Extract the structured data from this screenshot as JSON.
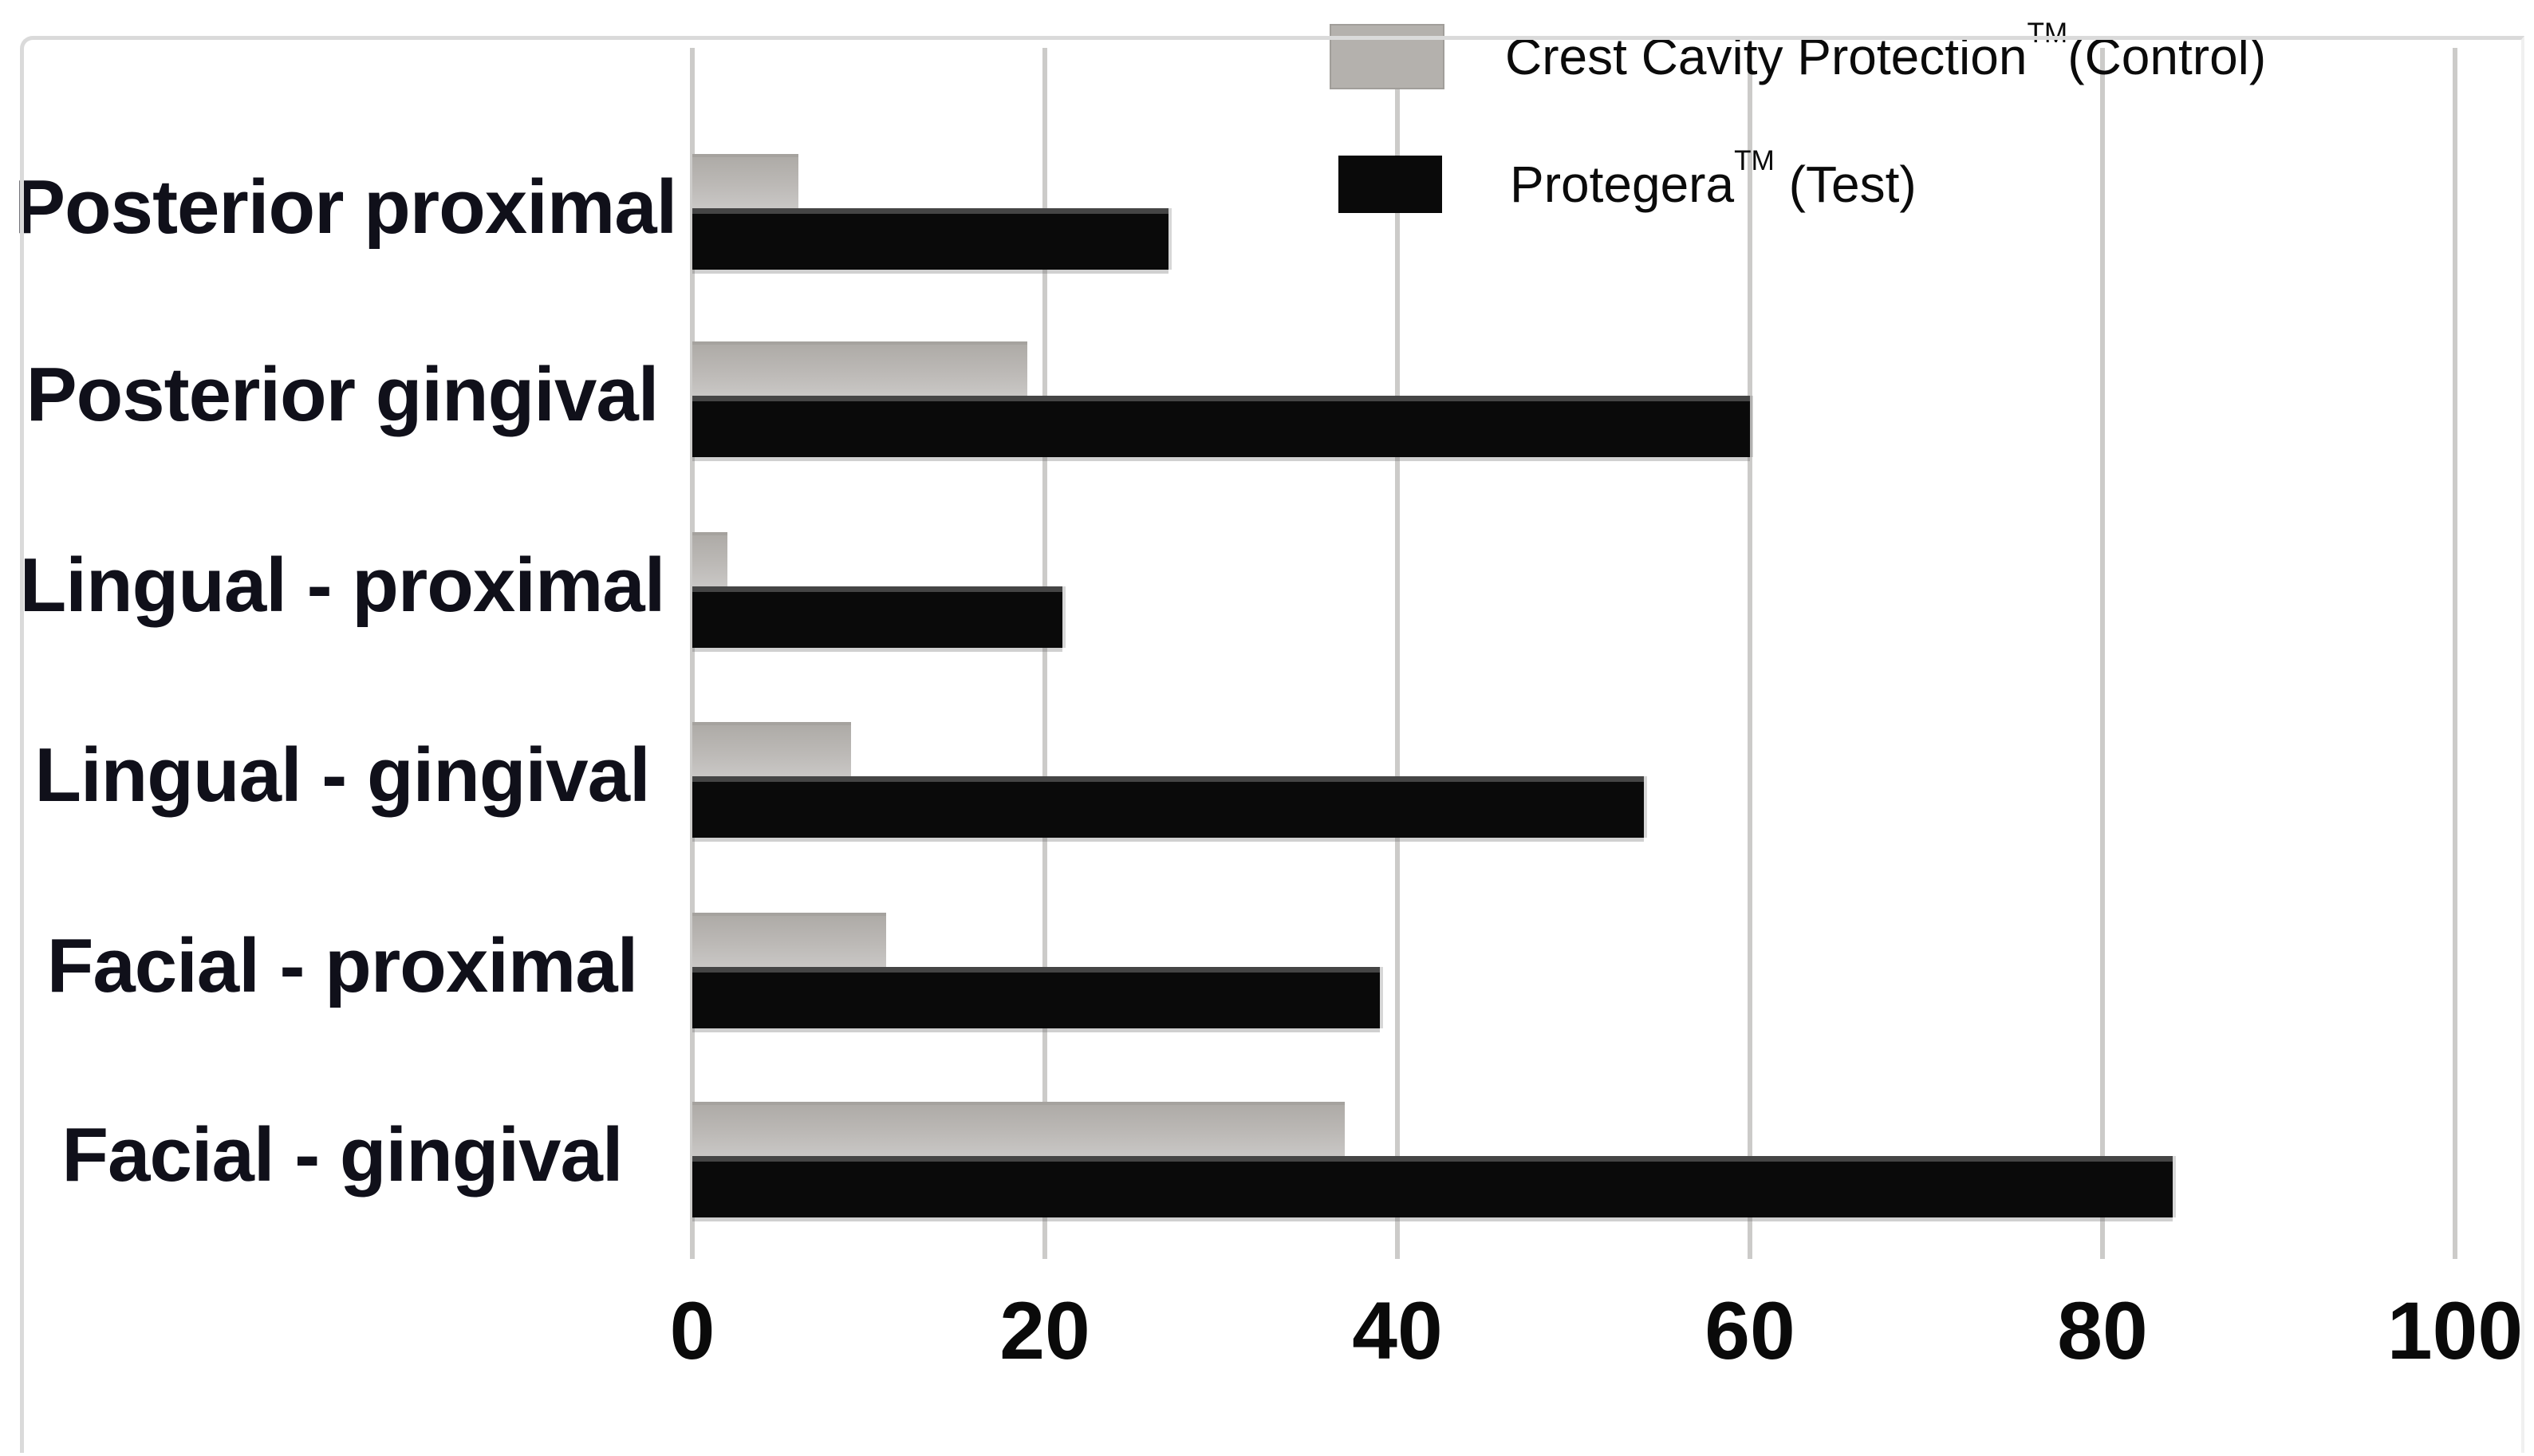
{
  "chart_data": {
    "type": "bar",
    "orientation": "horizontal",
    "categories": [
      "Posterior proximal",
      "Posterior gingival",
      "Lingual - proximal",
      "Lingual - gingival",
      "Facial - proximal",
      "Facial - gingival"
    ],
    "series": [
      {
        "name": "Crest Cavity Protection™(Control)",
        "color": "#b4b1ad",
        "values": [
          6,
          19,
          2,
          9,
          11,
          37
        ]
      },
      {
        "name": "Protegera™ (Test)",
        "color": "#0a0a0a",
        "values": [
          27,
          60,
          21,
          54,
          39,
          84
        ]
      }
    ],
    "xlim": [
      0,
      100
    ],
    "x_ticks": [
      0,
      20,
      40,
      60,
      80,
      100
    ],
    "xlabel": "",
    "ylabel": "",
    "title": "",
    "grid": "vertical gridlines on",
    "legend_position": "top-right"
  },
  "legend": {
    "items": [
      {
        "name": "Crest Cavity Protection",
        "tm": "TM",
        "suffix": "(Control)",
        "color": "#b4b1ad"
      },
      {
        "name": "Protegera",
        "tm": "TM",
        "suffix": " (Test)",
        "color": "#0a0a0a"
      }
    ]
  },
  "colors": {
    "control_bar": "#b4b1ad",
    "test_bar": "#0a0a0a",
    "gridline": "#cccbc9",
    "text": "#0a0a0a",
    "background": "#ffffff"
  }
}
